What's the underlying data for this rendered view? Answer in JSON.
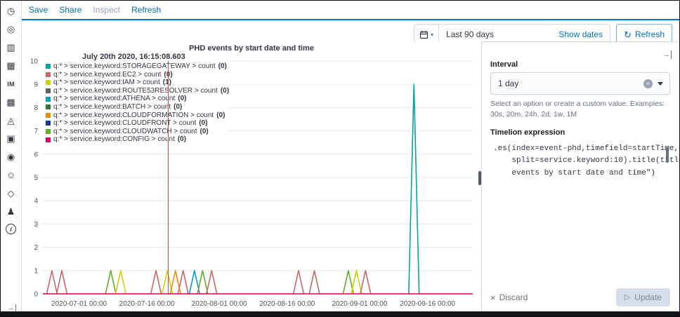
{
  "sidebar": {
    "icons": [
      {
        "name": "recently-viewed-icon",
        "glyph": "◷"
      },
      {
        "name": "discover-icon",
        "glyph": "◎"
      },
      {
        "name": "visualize-icon",
        "glyph": "▥"
      },
      {
        "name": "dashboard-icon",
        "glyph": "▦"
      },
      {
        "name": "im-app-icon",
        "glyph": "IM",
        "text": true
      },
      {
        "name": "canvas-icon",
        "glyph": "▩"
      },
      {
        "name": "alerts-icon",
        "glyph": "◬"
      },
      {
        "name": "media-icon",
        "glyph": "▣"
      },
      {
        "name": "monitoring-icon",
        "glyph": "◉"
      },
      {
        "name": "ml-icon",
        "glyph": "☺"
      },
      {
        "name": "packages-icon",
        "glyph": "◇"
      },
      {
        "name": "users-icon",
        "glyph": "♟"
      },
      {
        "name": "info-icon",
        "glyph": "i",
        "circle": true
      }
    ]
  },
  "toolbar": {
    "save": "Save",
    "share": "Share",
    "inspect": "Inspect",
    "refresh": "Refresh"
  },
  "timebar": {
    "quick_range": "Last 90 days",
    "show_dates": "Show dates",
    "refresh": "Refresh"
  },
  "panel": {
    "interval_label": "Interval",
    "interval_value": "1 day",
    "interval_help": "Select an option or create a custom value. Examples: 30s, 20m, 24h, 2d, 1w, 1M",
    "expression_label": "Timelion expression",
    "expression_lines": [
      ".es(index=event-phd,timefield=startTime,",
      "    split=service.keyword:10).title(title=\"PHD",
      "    events by start date and time\")"
    ],
    "discard": "Discard",
    "update": "Update"
  },
  "chart_data": {
    "type": "line",
    "title": "PHD events by start date and time",
    "xlabel": "",
    "ylabel": "",
    "ylim": [
      0,
      10
    ],
    "y_ticks": [
      0,
      1,
      2,
      3,
      4,
      5,
      6,
      7,
      8,
      9,
      10
    ],
    "domain_days": [
      0,
      95
    ],
    "x_ticks": [
      {
        "day": 8,
        "label": "2020-07-01 00:00"
      },
      {
        "day": 23,
        "label": "2020-07-16 00:00"
      },
      {
        "day": 39,
        "label": "2020-08-01 00:00"
      },
      {
        "day": 54,
        "label": "2020-08-16 00:00"
      },
      {
        "day": 70,
        "label": "2020-09-01 00:00"
      },
      {
        "day": 85,
        "label": "2020-09-16 00:00"
      }
    ],
    "palette": {
      "teal": "#01A4A4",
      "red": "#CC6666",
      "yellow": "#D0D102",
      "gray": "#616161",
      "blue": "#00A1CB",
      "green": "#32742C",
      "orange": "#F18D05",
      "navy": "#113F8C",
      "lightgreen": "#61AE24",
      "crimson": "#D70060"
    },
    "baseline_color": "crimson",
    "spike_half_width_days": 1.15,
    "spikes": [
      {
        "day": 2,
        "h": 1,
        "color": "red"
      },
      {
        "day": 4.2,
        "h": 1,
        "color": "red"
      },
      {
        "day": 15,
        "h": 1,
        "color": "lightgreen"
      },
      {
        "day": 17.2,
        "h": 1,
        "color": "yellow"
      },
      {
        "day": 25,
        "h": 1,
        "color": "red"
      },
      {
        "day": 27.5,
        "h": 1,
        "color": "yellow"
      },
      {
        "day": 29.3,
        "h": 1,
        "color": "orange"
      },
      {
        "day": 31,
        "h": 1,
        "color": "red"
      },
      {
        "day": 33.5,
        "h": 1,
        "color": "blue"
      },
      {
        "day": 35.3,
        "h": 1,
        "color": "lightgreen"
      },
      {
        "day": 37.3,
        "h": 1,
        "color": "red"
      },
      {
        "day": 56.5,
        "h": 1,
        "color": "red"
      },
      {
        "day": 60,
        "h": 1,
        "color": "red"
      },
      {
        "day": 67.5,
        "h": 1,
        "color": "lightgreen"
      },
      {
        "day": 69.3,
        "h": 1,
        "color": "yellow"
      },
      {
        "day": 71.3,
        "h": 1,
        "color": "red"
      },
      {
        "day": 82,
        "h": 9,
        "color": "teal"
      }
    ],
    "crosshair_day": 27.7,
    "crosshair_color": "#cc4444",
    "tooltip": {
      "timestamp": "July 20th 2020, 16:15:08.603"
    },
    "series": [
      {
        "service": "STORAGEGATEWAY",
        "label": "q:* > service.keyword:STORAGEGATEWAY > count",
        "color": "teal",
        "hover_count": 0
      },
      {
        "service": "EC2",
        "label": "q:* > service.keyword:EC2 > count",
        "color": "red",
        "hover_count": 0
      },
      {
        "service": "IAM",
        "label": "q:* > service.keyword:IAM > count",
        "color": "yellow",
        "hover_count": 1
      },
      {
        "service": "ROUTE53RESOLVER",
        "label": "q:* > service.keyword:ROUTE53RESOLVER > count",
        "color": "gray",
        "hover_count": 0
      },
      {
        "service": "ATHENA",
        "label": "q:* > service.keyword:ATHENA > count",
        "color": "blue",
        "hover_count": 0
      },
      {
        "service": "BATCH",
        "label": "q:* > service.keyword:BATCH > count",
        "color": "green",
        "hover_count": 0
      },
      {
        "service": "CLOUDFORMATION",
        "label": "q:* > service.keyword:CLOUDFORMATION > count",
        "color": "orange",
        "hover_count": 0
      },
      {
        "service": "CLOUDFRONT",
        "label": "q:* > service.keyword:CLOUDFRONT > count",
        "color": "navy",
        "hover_count": 0
      },
      {
        "service": "CLOUDWATCH",
        "label": "q:* > service.keyword:CLOUDWATCH > count",
        "color": "lightgreen",
        "hover_count": 0
      },
      {
        "service": "CONFIG",
        "label": "q:* > service.keyword:CONFIG > count",
        "color": "crimson",
        "hover_count": 0
      }
    ]
  }
}
